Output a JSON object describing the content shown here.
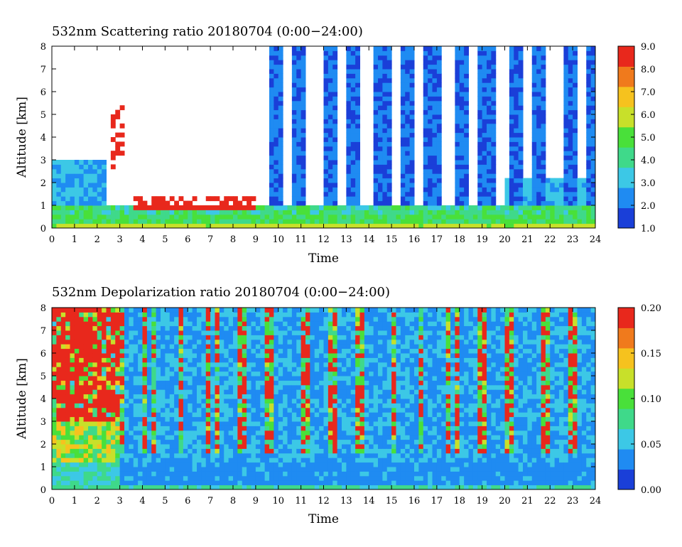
{
  "chart_data": [
    {
      "type": "heatmap",
      "title": "532nm Scattering ratio  20180704 (0:00−24:00)",
      "xlabel": "Time",
      "ylabel": "Altitude [km]",
      "xlim": [
        0,
        24
      ],
      "ylim": [
        0,
        8
      ],
      "x_ticks": [
        "0",
        "1",
        "2",
        "3",
        "4",
        "5",
        "6",
        "7",
        "8",
        "9",
        "10",
        "11",
        "12",
        "13",
        "14",
        "15",
        "16",
        "17",
        "18",
        "19",
        "20",
        "21",
        "22",
        "23",
        "24"
      ],
      "y_ticks": [
        "0",
        "1",
        "2",
        "3",
        "4",
        "5",
        "6",
        "7",
        "8"
      ],
      "colorbar": {
        "range": [
          1.0,
          9.0
        ],
        "ticks": [
          "1.0",
          "2.0",
          "3.0",
          "4.0",
          "5.0",
          "6.0",
          "7.0",
          "8.0",
          "9.0"
        ],
        "colors": [
          "#1a3fd8",
          "#1f8bf2",
          "#3cc8e6",
          "#3fd98a",
          "#49e03a",
          "#c8e02a",
          "#f6c21e",
          "#f07a1c",
          "#e8281c"
        ]
      },
      "features": [
        {
          "desc": "boundary layer",
          "altitude_km": [
            0,
            1.3
          ],
          "value_range": [
            2.5,
            9.0
          ]
        },
        {
          "desc": "cloud base layer",
          "time_h": [
            3.5,
            9
          ],
          "altitude_km": [
            0.8,
            1.4
          ],
          "value": ">9"
        },
        {
          "desc": "mid-level clouds",
          "time_h": [
            2.5,
            3.5
          ],
          "altitude_km": [
            2.5,
            5.5
          ],
          "value": ">9"
        },
        {
          "desc": "upper-level columns",
          "time_h": [
            9.5,
            24
          ],
          "altitude_km": [
            1.5,
            8
          ],
          "value_range": [
            1.0,
            2.5
          ]
        }
      ]
    },
    {
      "type": "heatmap",
      "title": "532nm Depolarization ratio  20180704 (0:00−24:00)",
      "xlabel": "Time",
      "ylabel": "Altitude [km]",
      "xlim": [
        0,
        24
      ],
      "ylim": [
        0,
        8
      ],
      "x_ticks": [
        "0",
        "1",
        "2",
        "3",
        "4",
        "5",
        "6",
        "7",
        "8",
        "9",
        "10",
        "11",
        "12",
        "13",
        "14",
        "15",
        "16",
        "17",
        "18",
        "19",
        "20",
        "21",
        "22",
        "23",
        "24"
      ],
      "y_ticks": [
        "0",
        "1",
        "2",
        "3",
        "4",
        "5",
        "6",
        "7",
        "8"
      ],
      "colorbar": {
        "range": [
          0.0,
          0.2
        ],
        "ticks": [
          "0.00",
          "0.05",
          "0.10",
          "0.15",
          "0.20"
        ],
        "colors": [
          "#1a3fd8",
          "#1f8bf2",
          "#3cc8e6",
          "#3fd98a",
          "#49e03a",
          "#c8e02a",
          "#f6c21e",
          "#f07a1c",
          "#e8281c"
        ]
      },
      "features": [
        {
          "desc": "high depolarization aloft",
          "time_h": [
            0,
            3
          ],
          "altitude_km": [
            3,
            8
          ],
          "value": 0.2
        },
        {
          "desc": "boundary layer",
          "altitude_km": [
            0,
            1.2
          ],
          "value_range": [
            0.03,
            0.08
          ]
        },
        {
          "desc": "columnar returns",
          "time_h": [
            3,
            24
          ],
          "altitude_km": [
            1.5,
            8
          ],
          "value_range": [
            0.02,
            0.2
          ]
        }
      ]
    }
  ]
}
